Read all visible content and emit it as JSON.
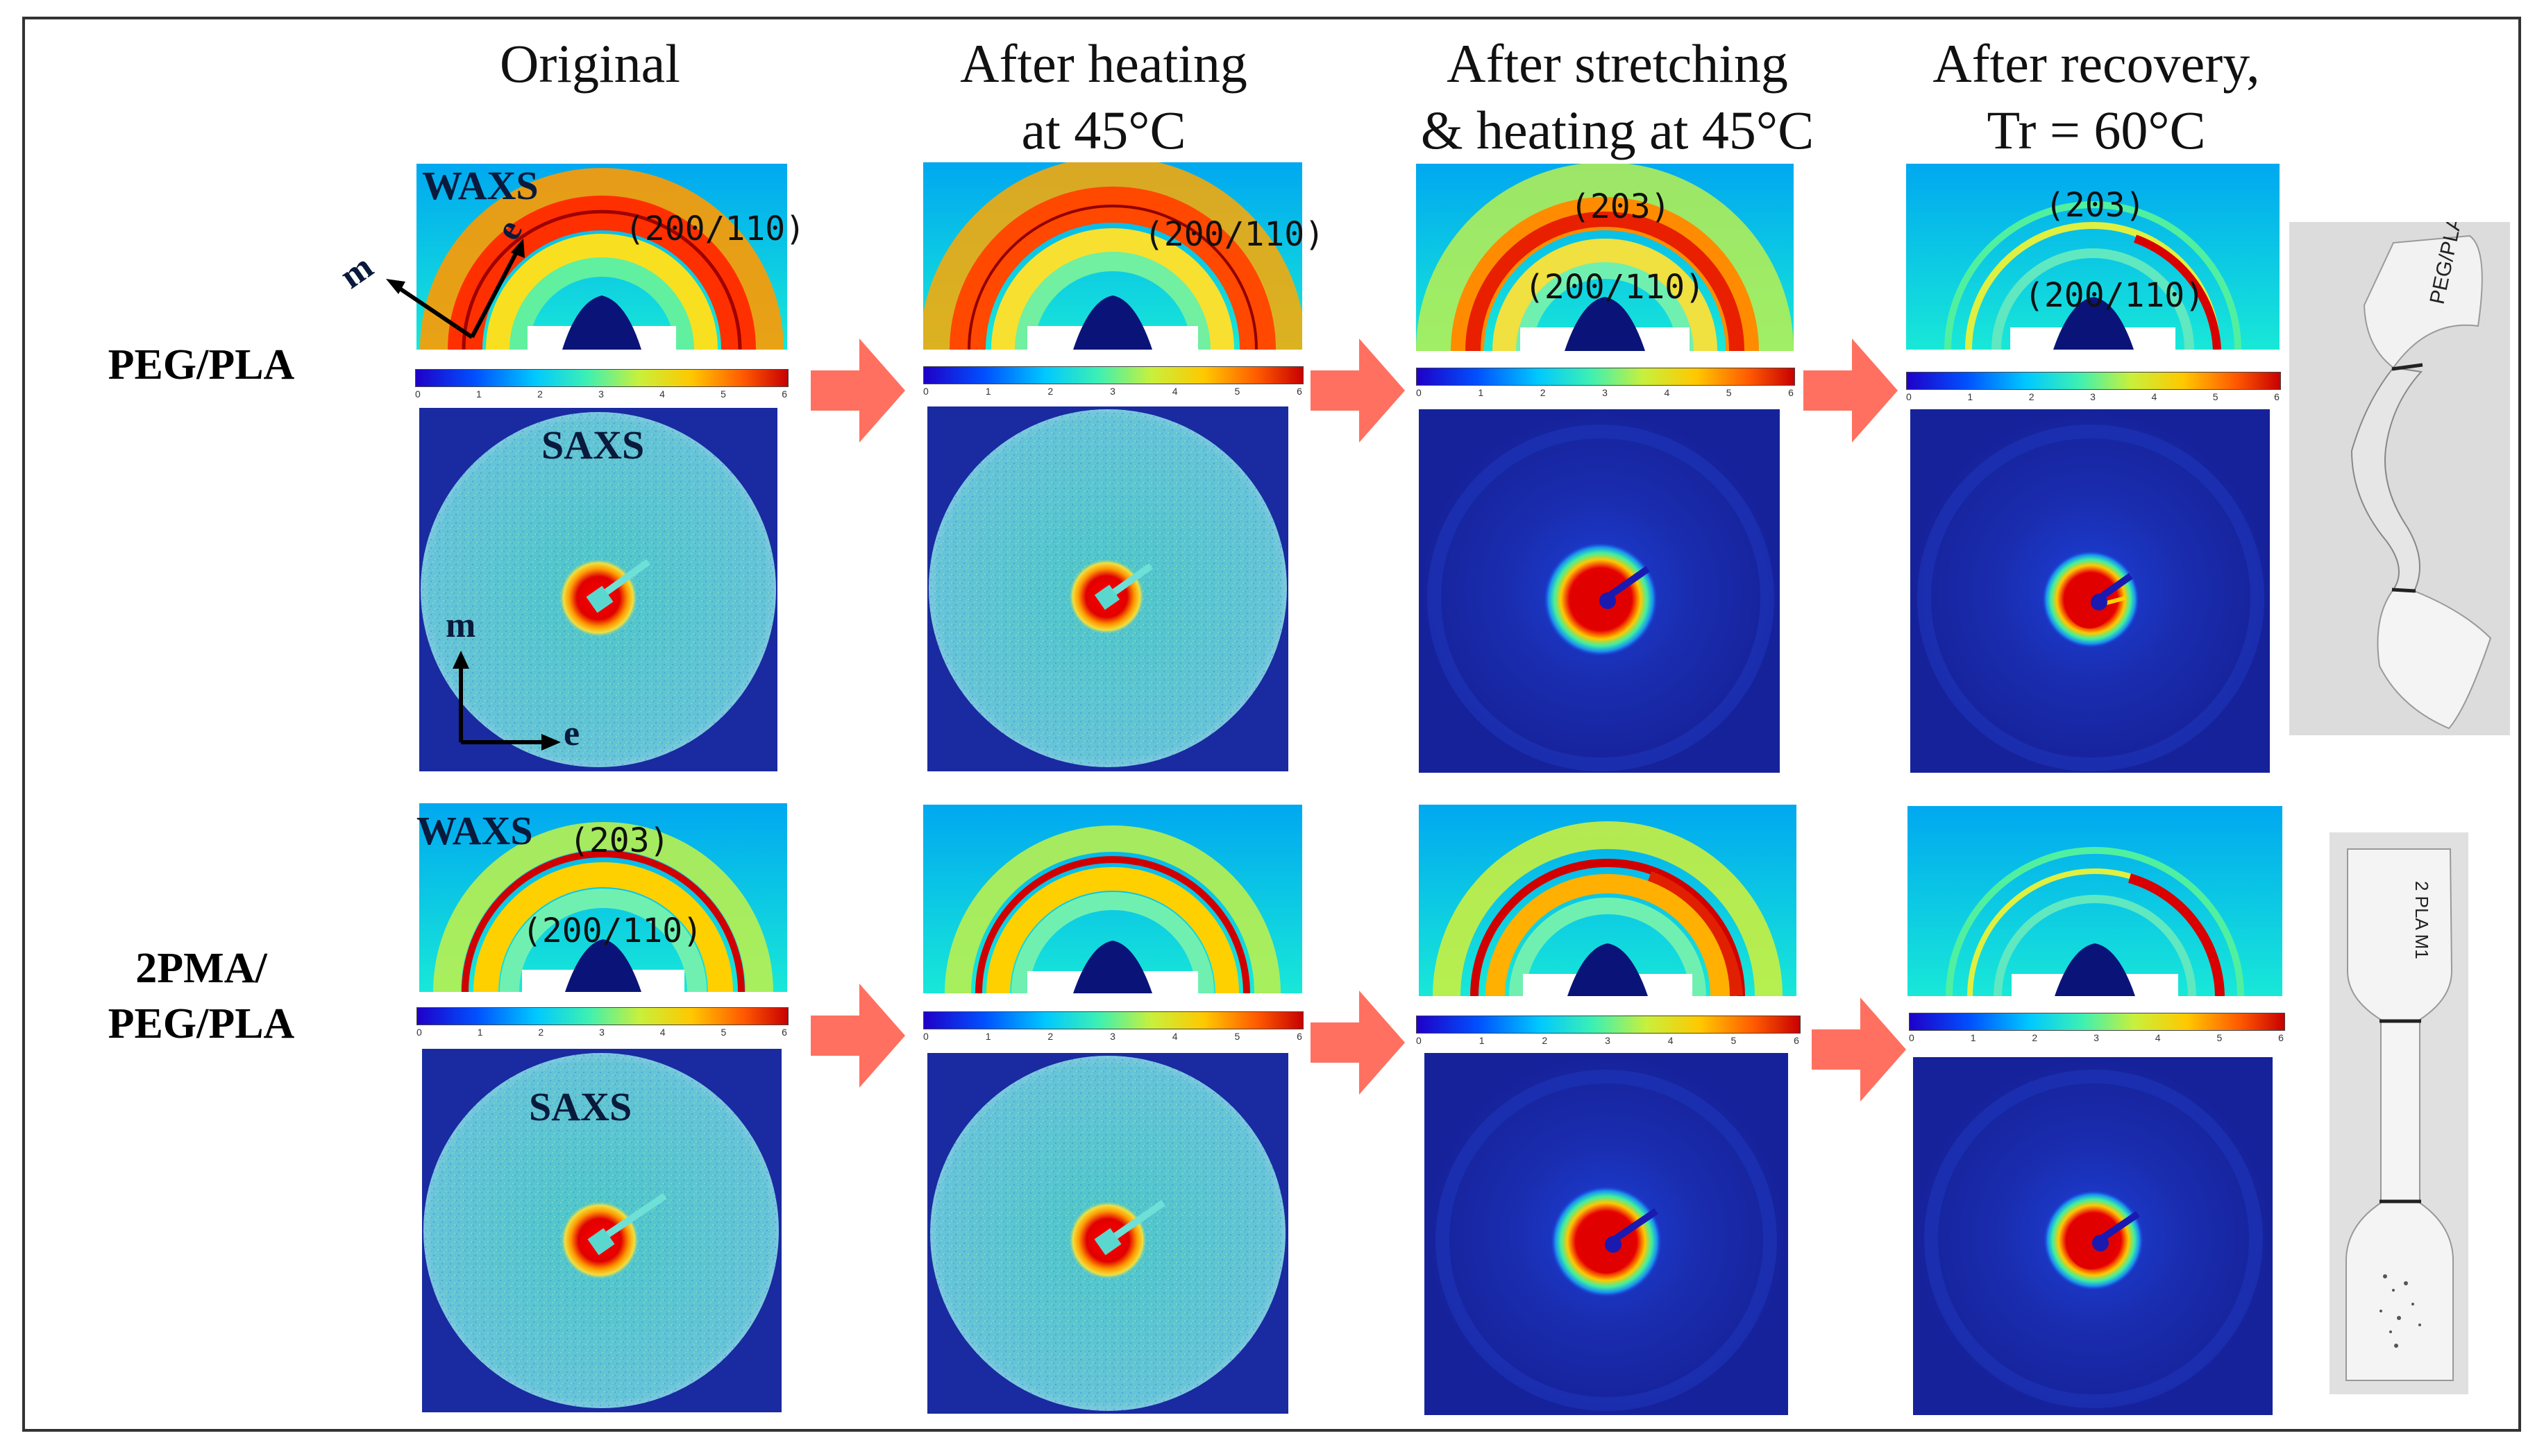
{
  "columns": [
    {
      "title_line1": "Original",
      "title_line2": ""
    },
    {
      "title_line1": "After heating",
      "title_line2": "at 45°C"
    },
    {
      "title_line1": "After stretching",
      "title_line2": "& heating at 45°C"
    },
    {
      "title_line1": "After recovery,",
      "title_line2": "Tr = 60°C"
    }
  ],
  "rows": [
    {
      "label_line1": "PEG/PLA",
      "label_line2": ""
    },
    {
      "label_line1": "2PMA/",
      "label_line2": "PEG/PLA"
    }
  ],
  "labels": {
    "waxs": "WAXS",
    "saxs": "SAXS",
    "axis_m": "m",
    "axis_e": "e",
    "peak_200_110": "(200/110)",
    "peak_203": "(203)"
  },
  "colorbar_ticks": [
    "0",
    "1",
    "2",
    "3",
    "4",
    "5",
    "6"
  ],
  "colors": {
    "arrow": "#ff7060",
    "frame": "#333333",
    "saxs_bg_bright": "#6ec8dc",
    "saxs_bg_dark": "#1a2aa0"
  },
  "specimen_labels": {
    "top": "PEG/PLA",
    "bottom": "2 PLA M1"
  }
}
